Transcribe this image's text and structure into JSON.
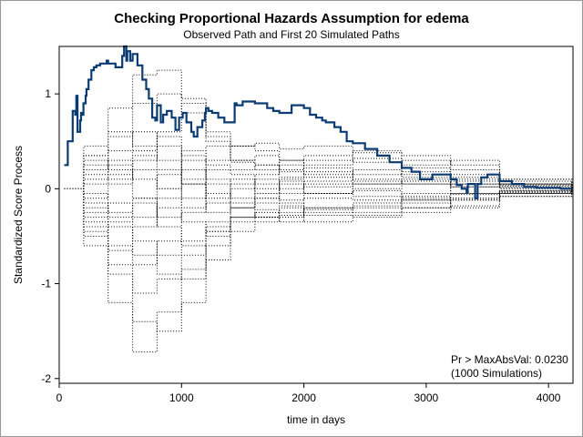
{
  "chart_data": {
    "type": "line",
    "title": "Checking Proportional Hazards Assumption for edema",
    "subtitle": "Observed Path and First 20 Simulated Paths",
    "xlabel": "time in days",
    "ylabel": "Standardized Score Process",
    "xlim": [
      0,
      4200
    ],
    "ylim": [
      -2.05,
      1.5
    ],
    "xticks": [
      0,
      1000,
      2000,
      3000,
      4000
    ],
    "yticks": [
      -2,
      -1,
      0,
      1
    ],
    "annotation": [
      "Pr > MaxAbsVal: 0.0230",
      "(1000 Simulations)"
    ],
    "grid": false,
    "colors": {
      "observed": "#0b3b73",
      "simulated": "#000000"
    },
    "observed": {
      "x": [
        41,
        51,
        70,
        110,
        131,
        140,
        150,
        171,
        179,
        191,
        198,
        216,
        223,
        240,
        263,
        283,
        304,
        334,
        388,
        400,
        460,
        515,
        530,
        549,
        556,
        580,
        600,
        640,
        680,
        711,
        733,
        760,
        786,
        800,
        830,
        850,
        880,
        920,
        950,
        980,
        1010,
        1040,
        1080,
        1100,
        1130,
        1170,
        1191,
        1200,
        1220,
        1250,
        1300,
        1350,
        1434,
        1450,
        1500,
        1600,
        1700,
        1750,
        1800,
        1900,
        2000,
        2050,
        2100,
        2150,
        2180,
        2250,
        2300,
        2350,
        2400,
        2500,
        2600,
        2700,
        2800,
        2880,
        2950,
        3050,
        3200,
        3250,
        3290,
        3330,
        3340,
        3400,
        3420,
        3450,
        3500,
        3600,
        3700,
        3800,
        3900,
        4000,
        4100,
        4190
      ],
      "y": [
        0.25,
        0.25,
        0.5,
        0.82,
        0.78,
        0.98,
        0.6,
        0.72,
        0.8,
        0.78,
        0.9,
        0.98,
        1.05,
        1.15,
        1.25,
        1.28,
        1.3,
        1.32,
        1.35,
        1.32,
        1.28,
        1.4,
        1.5,
        1.35,
        1.45,
        1.35,
        1.42,
        1.3,
        1.15,
        1.05,
        0.95,
        0.75,
        0.72,
        0.88,
        0.7,
        0.78,
        0.82,
        0.75,
        0.62,
        0.75,
        0.8,
        0.7,
        0.6,
        0.55,
        0.65,
        0.72,
        0.8,
        0.85,
        0.82,
        0.8,
        0.75,
        0.7,
        0.9,
        0.88,
        0.92,
        0.9,
        0.85,
        0.82,
        0.8,
        0.88,
        0.85,
        0.78,
        0.75,
        0.72,
        0.7,
        0.65,
        0.6,
        0.5,
        0.48,
        0.42,
        0.35,
        0.28,
        0.22,
        0.18,
        0.1,
        0.15,
        0.1,
        0.04,
        0.0,
        -0.04,
        0.05,
        -0.1,
        0.05,
        0.12,
        0.15,
        0.08,
        0.05,
        0.02,
        0.01,
        0.01,
        0.0,
        0.0
      ]
    },
    "simulated": [
      {
        "x": [
          41,
          200,
          400,
          600,
          800,
          1000,
          1200,
          1400,
          1600,
          1800,
          2000,
          2400,
          2800,
          3200,
          3600,
          4190
        ],
        "y": [
          0,
          0.35,
          0.85,
          1.2,
          1.25,
          0.95,
          0.5,
          0.3,
          0.25,
          0.2,
          0.22,
          0.15,
          0.12,
          0.08,
          0.05,
          0.0
        ]
      },
      {
        "x": [
          41,
          200,
          400,
          600,
          800,
          1000,
          1200,
          1400,
          1600,
          1800,
          2000,
          2400,
          2800,
          3200,
          3600,
          4190
        ],
        "y": [
          0,
          -0.6,
          -1.2,
          -1.72,
          -1.3,
          -0.85,
          -0.45,
          -0.3,
          -0.25,
          -0.2,
          -0.22,
          -0.2,
          -0.15,
          -0.12,
          -0.05,
          0.0
        ]
      },
      {
        "x": [
          41,
          200,
          400,
          600,
          800,
          1000,
          1200,
          1400,
          1600,
          1800,
          2000,
          2400,
          2800,
          3200,
          3600,
          4190
        ],
        "y": [
          0,
          -0.4,
          -0.9,
          -1.4,
          -1.5,
          -1.2,
          -0.75,
          -0.35,
          -0.3,
          -0.28,
          -0.2,
          -0.18,
          -0.12,
          -0.1,
          -0.08,
          0.0
        ]
      },
      {
        "x": [
          41,
          200,
          400,
          600,
          800,
          1000,
          1200,
          1400,
          1600,
          1800,
          2000,
          2400,
          2800,
          3200,
          3600,
          4190
        ],
        "y": [
          0,
          0.2,
          0.55,
          0.9,
          1.0,
          0.8,
          0.6,
          0.45,
          0.48,
          0.42,
          0.45,
          0.38,
          0.3,
          0.2,
          0.08,
          0.0
        ]
      },
      {
        "x": [
          41,
          200,
          400,
          600,
          800,
          1000,
          1200,
          1400,
          1600,
          1800,
          2000,
          2400,
          2800,
          3200,
          3600,
          4190
        ],
        "y": [
          0,
          -0.3,
          -0.6,
          -0.8,
          -0.7,
          -0.55,
          -0.4,
          -0.2,
          -0.15,
          -0.18,
          -0.1,
          -0.12,
          -0.08,
          -0.05,
          -0.03,
          0.0
        ]
      },
      {
        "x": [
          41,
          200,
          400,
          600,
          800,
          1000,
          1200,
          1400,
          1600,
          1800,
          2000,
          2400,
          2800,
          3200,
          3600,
          4190
        ],
        "y": [
          0,
          0.3,
          0.2,
          0.4,
          0.55,
          0.35,
          0.1,
          -0.1,
          -0.05,
          0.1,
          0.3,
          0.4,
          0.35,
          0.25,
          0.1,
          0.0
        ]
      },
      {
        "x": [
          41,
          200,
          400,
          600,
          800,
          1000,
          1200,
          1400,
          1600,
          1800,
          2000,
          2400,
          2800,
          3200,
          3600,
          4190
        ],
        "y": [
          0,
          -0.2,
          -0.3,
          -0.55,
          -0.9,
          -0.95,
          -0.6,
          -0.3,
          -0.1,
          -0.15,
          -0.25,
          -0.15,
          -0.05,
          0.05,
          0.03,
          0.0
        ]
      },
      {
        "x": [
          41,
          200,
          400,
          600,
          800,
          1000,
          1200,
          1400,
          1600,
          1800,
          2000,
          2400,
          2800,
          3200,
          3600,
          4190
        ],
        "y": [
          0,
          0.1,
          0.25,
          0.1,
          0.0,
          0.3,
          0.45,
          0.28,
          0.2,
          0.12,
          0.18,
          0.05,
          0.1,
          0.15,
          0.05,
          0.0
        ]
      },
      {
        "x": [
          41,
          200,
          400,
          600,
          800,
          1000,
          1200,
          1400,
          1600,
          1800,
          2000,
          2400,
          2800,
          3200,
          3600,
          4190
        ],
        "y": [
          0,
          -0.5,
          -0.65,
          -0.4,
          -0.2,
          -0.35,
          -0.5,
          -0.3,
          -0.22,
          -0.3,
          -0.2,
          -0.25,
          -0.2,
          -0.12,
          -0.05,
          0.0
        ]
      },
      {
        "x": [
          41,
          200,
          400,
          600,
          800,
          1000,
          1200,
          1400,
          1600,
          1800,
          2000,
          2400,
          2800,
          3200,
          3600,
          4190
        ],
        "y": [
          0,
          0.45,
          0.3,
          -0.1,
          -0.3,
          -0.1,
          0.2,
          0.15,
          0.05,
          -0.05,
          0.08,
          0.2,
          0.18,
          0.05,
          0.02,
          0.0
        ]
      },
      {
        "x": [
          41,
          200,
          400,
          600,
          800,
          1000,
          1200,
          1400,
          1600,
          1800,
          2000,
          2400,
          2800,
          3200,
          3600,
          4190
        ],
        "y": [
          0,
          -0.1,
          0.05,
          0.3,
          0.6,
          0.9,
          0.55,
          0.3,
          0.35,
          0.25,
          0.15,
          0.1,
          0.25,
          0.3,
          0.1,
          0.0
        ]
      },
      {
        "x": [
          41,
          200,
          400,
          600,
          800,
          1000,
          1200,
          1400,
          1600,
          1800,
          2000,
          2400,
          2800,
          3200,
          3600,
          4190
        ],
        "y": [
          0,
          -0.25,
          -0.15,
          -0.3,
          -0.1,
          0.1,
          -0.05,
          -0.2,
          -0.3,
          -0.35,
          -0.28,
          -0.3,
          -0.25,
          -0.18,
          -0.05,
          0.0
        ]
      },
      {
        "x": [
          41,
          200,
          400,
          600,
          800,
          1000,
          1200,
          1400,
          1600,
          1800,
          2000,
          2400,
          2800,
          3200,
          3600,
          4190
        ],
        "y": [
          0,
          0.15,
          0.4,
          0.6,
          0.45,
          0.2,
          -0.1,
          0.0,
          0.15,
          0.3,
          0.35,
          0.28,
          0.15,
          0.1,
          0.05,
          0.0
        ]
      },
      {
        "x": [
          41,
          200,
          400,
          600,
          800,
          1000,
          1200,
          1400,
          1600,
          1800,
          2000,
          2400,
          2800,
          3200,
          3600,
          4190
        ],
        "y": [
          0,
          -0.05,
          -0.4,
          -0.7,
          -0.55,
          -0.25,
          0.05,
          0.1,
          -0.05,
          -0.12,
          -0.05,
          -0.02,
          -0.1,
          -0.2,
          -0.08,
          0.0
        ]
      },
      {
        "x": [
          41,
          200,
          400,
          600,
          800,
          1000,
          1200,
          1400,
          1600,
          1800,
          2000,
          2400,
          2800,
          3200,
          3600,
          4190
        ],
        "y": [
          0,
          0.05,
          0.15,
          0.35,
          0.2,
          0.05,
          0.3,
          0.45,
          0.4,
          0.3,
          0.25,
          0.32,
          0.22,
          -0.05,
          -0.02,
          0.0
        ]
      },
      {
        "x": [
          41,
          200,
          400,
          600,
          800,
          1000,
          1200,
          1400,
          1600,
          1800,
          2000,
          2400,
          2800,
          3200,
          3600,
          4190
        ],
        "y": [
          0,
          -0.35,
          -0.8,
          -1.1,
          -0.95,
          -0.7,
          -0.35,
          -0.45,
          -0.35,
          -0.25,
          -0.35,
          -0.28,
          -0.2,
          -0.1,
          -0.04,
          0.0
        ]
      },
      {
        "x": [
          41,
          200,
          400,
          600,
          800,
          1000,
          1200,
          1400,
          1600,
          1800,
          2000,
          2400,
          2800,
          3200,
          3600,
          4190
        ],
        "y": [
          0,
          0.25,
          0.1,
          0.2,
          0.0,
          -0.2,
          -0.15,
          0.05,
          0.1,
          0.05,
          -0.05,
          0.0,
          0.05,
          0.12,
          0.04,
          0.0
        ]
      },
      {
        "x": [
          41,
          200,
          400,
          600,
          800,
          1000,
          1200,
          1400,
          1600,
          1800,
          2000,
          2400,
          2800,
          3200,
          3600,
          4190
        ],
        "y": [
          0,
          -0.15,
          -0.25,
          -0.1,
          0.15,
          0.4,
          0.25,
          0.2,
          0.25,
          0.18,
          0.12,
          0.08,
          0.05,
          0.02,
          0.01,
          0.0
        ]
      },
      {
        "x": [
          41,
          200,
          400,
          600,
          800,
          1000,
          1200,
          1400,
          1600,
          1800,
          2000,
          2400,
          2800,
          3200,
          3600,
          4190
        ],
        "y": [
          0,
          0.35,
          0.6,
          0.45,
          0.3,
          0.05,
          -0.25,
          -0.2,
          -0.1,
          0.0,
          0.05,
          -0.08,
          -0.12,
          -0.06,
          -0.02,
          0.0
        ]
      },
      {
        "x": [
          41,
          200,
          400,
          600,
          800,
          1000,
          1200,
          1400,
          1600,
          1800,
          2000,
          2400,
          2800,
          3200,
          3600,
          4190
        ],
        "y": [
          0,
          -0.45,
          -0.35,
          -0.15,
          -0.4,
          -0.6,
          -0.45,
          -0.15,
          0.0,
          0.08,
          0.02,
          0.05,
          0.08,
          0.02,
          0.0,
          0.0
        ]
      }
    ]
  }
}
